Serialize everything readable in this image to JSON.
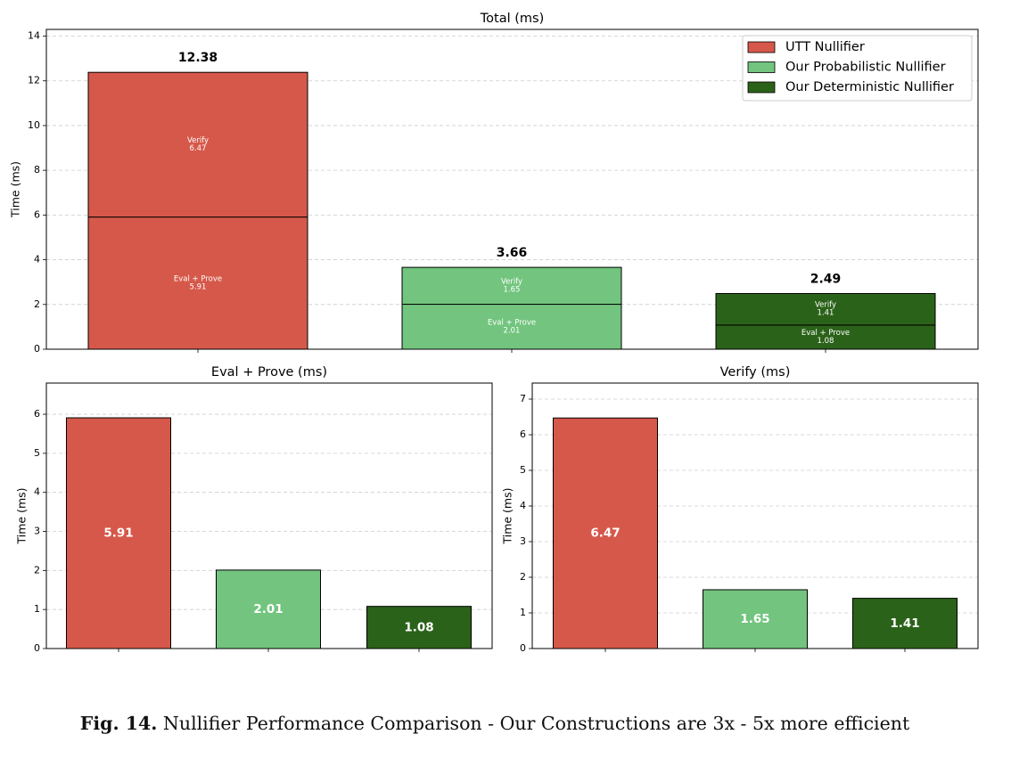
{
  "colors": {
    "utt": "#d6584a",
    "probabilistic": "#72c47e",
    "deterministic": "#2b6219",
    "edge": "#000000",
    "grid": "#cccccc"
  },
  "chart_data": [
    {
      "type": "bar",
      "stacked": true,
      "title": "Total (ms)",
      "ylabel": "Time (ms)",
      "ylim": [
        0,
        14.3
      ],
      "yticks": [
        0,
        2,
        4,
        6,
        8,
        10,
        12,
        14
      ],
      "grid": true,
      "legend": "top-right",
      "legend_entries": [
        "UTT Nullifier",
        "Our Probabilistic Nullifier",
        "Our Deterministic Nullifier"
      ],
      "segment_labels": [
        "Eval + Prove",
        "Verify"
      ],
      "bars": [
        {
          "name": "UTT Nullifier",
          "eval_prove": 5.91,
          "verify": 6.47,
          "total": 12.38,
          "total_label": "12.38",
          "ep_label": "5.91",
          "v_label": "6.47"
        },
        {
          "name": "Our Probabilistic Nullifier",
          "eval_prove": 2.01,
          "verify": 1.65,
          "total": 3.66,
          "total_label": "3.66",
          "ep_label": "2.01",
          "v_label": "1.65"
        },
        {
          "name": "Our Deterministic Nullifier",
          "eval_prove": 1.08,
          "verify": 1.41,
          "total": 2.49,
          "total_label": "2.49",
          "ep_label": "1.08",
          "v_label": "1.41"
        }
      ]
    },
    {
      "type": "bar",
      "title": "Eval + Prove (ms)",
      "ylabel": "Time (ms)",
      "ylim": [
        0,
        6.8
      ],
      "yticks": [
        0,
        1,
        2,
        3,
        4,
        5,
        6
      ],
      "grid": true,
      "categories": [
        "UTT Nullifier",
        "Our Probabilistic Nullifier",
        "Our Deterministic Nullifier"
      ],
      "values": [
        5.91,
        2.01,
        1.08
      ],
      "value_labels": [
        "5.91",
        "2.01",
        "1.08"
      ]
    },
    {
      "type": "bar",
      "title": "Verify (ms)",
      "ylabel": "Time (ms)",
      "ylim": [
        0,
        7.45
      ],
      "yticks": [
        0,
        1,
        2,
        3,
        4,
        5,
        6,
        7
      ],
      "grid": true,
      "categories": [
        "UTT Nullifier",
        "Our Probabilistic Nullifier",
        "Our Deterministic Nullifier"
      ],
      "values": [
        6.47,
        1.65,
        1.41
      ],
      "value_labels": [
        "6.47",
        "1.65",
        "1.41"
      ]
    }
  ],
  "caption": {
    "label": "Fig. 14.",
    "text": " Nullifier Performance Comparison - Our Constructions are 3x - 5x more efficient"
  }
}
